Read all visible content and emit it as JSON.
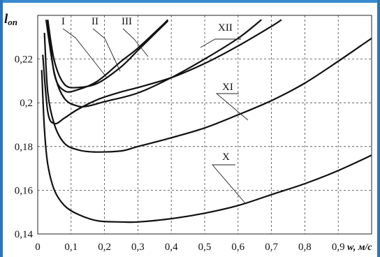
{
  "chart_data": {
    "type": "line",
    "title": "",
    "ylabel": "l",
    "ylabel_sub": "on",
    "xlabel": "w, м/с",
    "xlim": [
      0,
      1.0
    ],
    "ylim": [
      0.14,
      0.24
    ],
    "x_ticks": [
      "0",
      "0,1",
      "0,2",
      "0,3",
      "0,4",
      "0,5",
      "0,6",
      "0,7",
      "0,8",
      "0,9"
    ],
    "y_ticks": [
      "0,14",
      "0,16",
      "0,18",
      "0,2",
      "0,22"
    ],
    "grid": true,
    "series": [
      {
        "name": "X",
        "points": [
          [
            0.012,
            0.215
          ],
          [
            0.02,
            0.188
          ],
          [
            0.03,
            0.172
          ],
          [
            0.05,
            0.16
          ],
          [
            0.08,
            0.153
          ],
          [
            0.12,
            0.149
          ],
          [
            0.18,
            0.146
          ],
          [
            0.25,
            0.1455
          ],
          [
            0.3,
            0.1455
          ],
          [
            0.4,
            0.147
          ],
          [
            0.5,
            0.1495
          ],
          [
            0.6,
            0.153
          ],
          [
            0.7,
            0.158
          ],
          [
            0.8,
            0.163
          ],
          [
            0.9,
            0.169
          ],
          [
            1.0,
            0.176
          ]
        ]
      },
      {
        "name": "XI",
        "points": [
          [
            0.02,
            0.232
          ],
          [
            0.03,
            0.205
          ],
          [
            0.05,
            0.19
          ],
          [
            0.08,
            0.1815
          ],
          [
            0.12,
            0.1785
          ],
          [
            0.17,
            0.1775
          ],
          [
            0.25,
            0.178
          ],
          [
            0.3,
            0.18
          ],
          [
            0.4,
            0.184
          ],
          [
            0.5,
            0.1885
          ],
          [
            0.6,
            0.1945
          ],
          [
            0.7,
            0.201
          ],
          [
            0.8,
            0.209
          ],
          [
            0.9,
            0.219
          ],
          [
            1.0,
            0.2295
          ]
        ]
      },
      {
        "name": "XII",
        "points": [
          [
            0.015,
            0.222
          ],
          [
            0.03,
            0.196
          ],
          [
            0.05,
            0.1905
          ],
          [
            0.08,
            0.193
          ],
          [
            0.12,
            0.197
          ],
          [
            0.18,
            0.2015
          ],
          [
            0.25,
            0.205
          ],
          [
            0.3,
            0.207
          ],
          [
            0.4,
            0.2115
          ],
          [
            0.5,
            0.218
          ],
          [
            0.6,
            0.226
          ],
          [
            0.7,
            0.235
          ],
          [
            0.73,
            0.238
          ]
        ]
      },
      {
        "name": "I",
        "points": [
          [
            0.03,
            0.238
          ],
          [
            0.05,
            0.213
          ],
          [
            0.08,
            0.2055
          ],
          [
            0.12,
            0.206
          ],
          [
            0.18,
            0.21
          ],
          [
            0.25,
            0.219
          ],
          [
            0.3,
            0.225
          ],
          [
            0.37,
            0.235
          ],
          [
            0.39,
            0.238
          ]
        ]
      },
      {
        "name": "II",
        "points": [
          [
            0.03,
            0.238
          ],
          [
            0.05,
            0.219
          ],
          [
            0.08,
            0.2085
          ],
          [
            0.12,
            0.207
          ],
          [
            0.18,
            0.209
          ],
          [
            0.25,
            0.2165
          ],
          [
            0.3,
            0.224
          ],
          [
            0.36,
            0.233
          ],
          [
            0.39,
            0.2375
          ]
        ]
      },
      {
        "name": "III",
        "points": [
          [
            0.025,
            0.238
          ],
          [
            0.05,
            0.2135
          ],
          [
            0.08,
            0.202
          ],
          [
            0.12,
            0.1985
          ],
          [
            0.15,
            0.1985
          ],
          [
            0.2,
            0.2005
          ],
          [
            0.3,
            0.2045
          ],
          [
            0.4,
            0.2115
          ],
          [
            0.5,
            0.22
          ],
          [
            0.6,
            0.2295
          ],
          [
            0.67,
            0.238
          ]
        ]
      }
    ]
  }
}
